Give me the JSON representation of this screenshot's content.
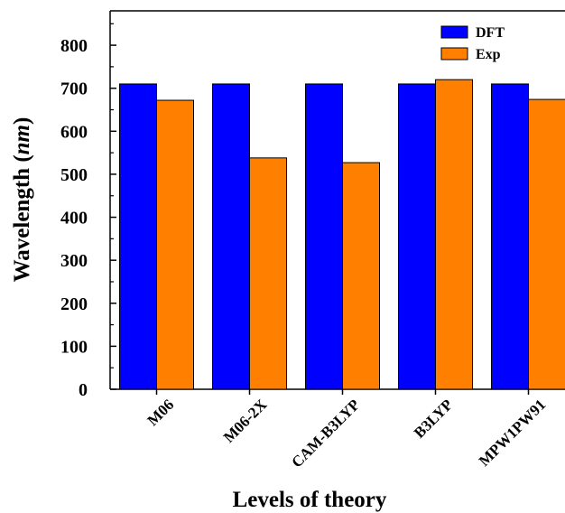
{
  "chart_data": {
    "type": "bar",
    "title": "",
    "xlabel": "Levels of theory",
    "ylabel_main": "Wavelength (",
    "ylabel_unit": "nm",
    "ylabel_close": ")",
    "categories": [
      "M06",
      "M06-2X",
      "CAM-B3LYP",
      "B3LYP",
      "MPW1PW91"
    ],
    "series": [
      {
        "name": "DFT",
        "color": "#0000ff",
        "values": [
          710,
          710,
          710,
          710,
          710
        ]
      },
      {
        "name": "Exp",
        "color": "#ff8000",
        "values": [
          672,
          538,
          527,
          720,
          674
        ]
      }
    ],
    "ylim": [
      0,
      880
    ],
    "yticks": [
      0,
      100,
      200,
      300,
      400,
      500,
      600,
      700,
      800
    ],
    "legend_position": "top-right",
    "grid": false
  }
}
